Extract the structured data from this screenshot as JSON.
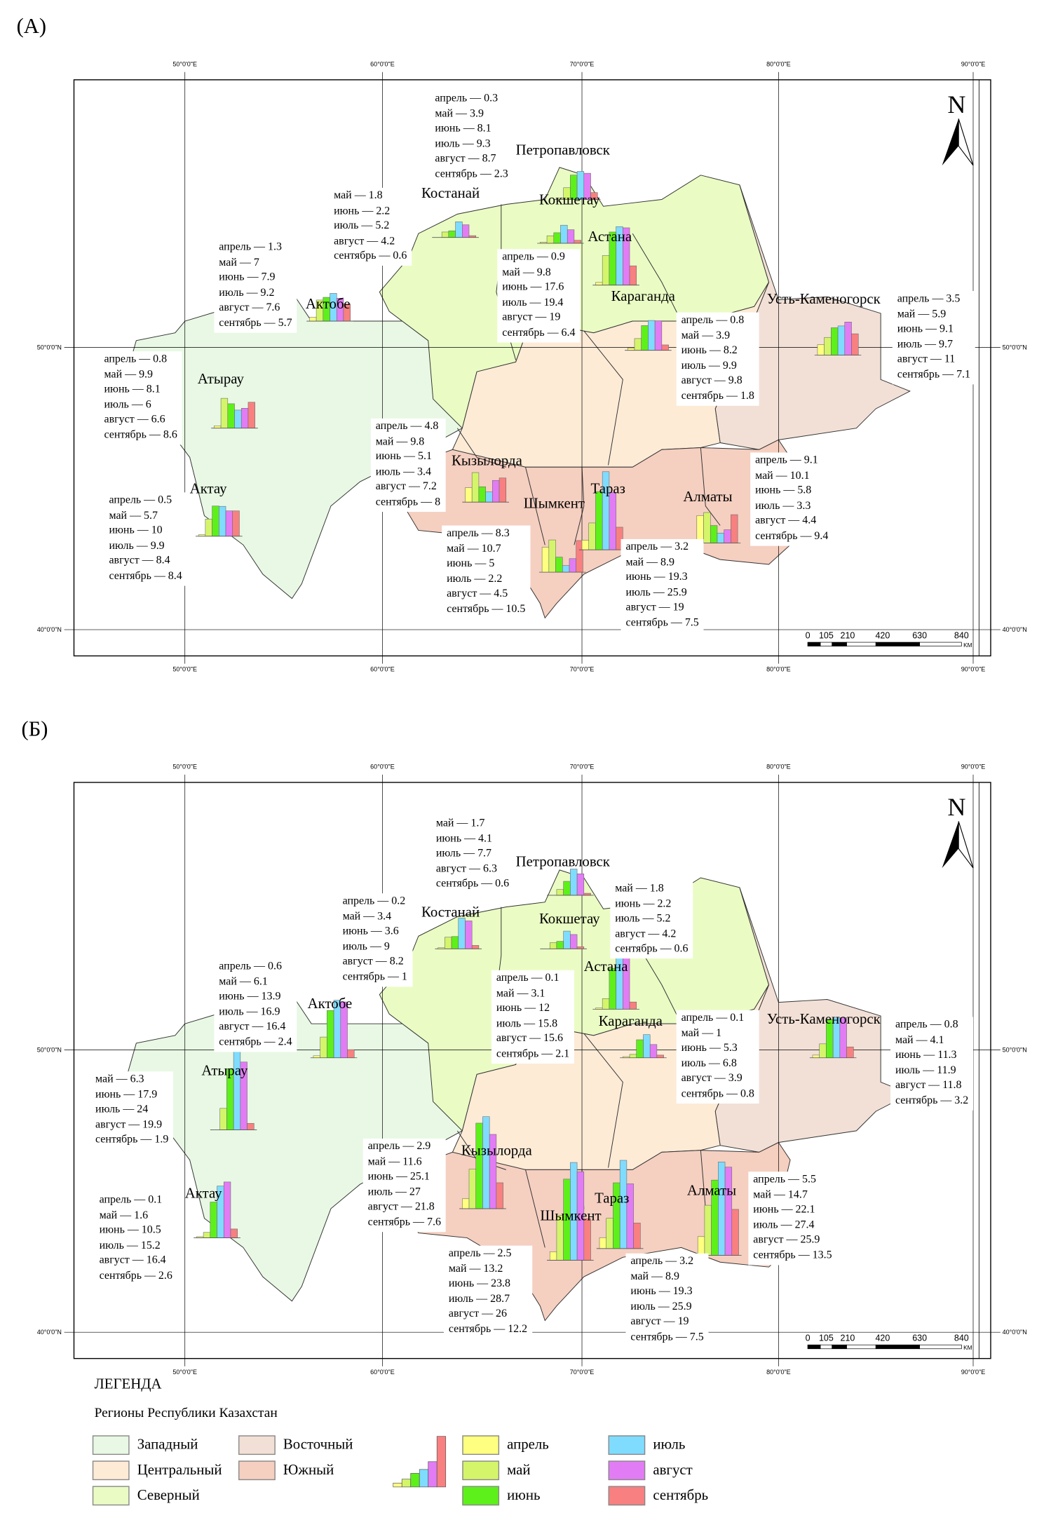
{
  "panels": [
    {
      "label": "(А)",
      "cities": [
        {
          "name": "Петропавловск",
          "values": [
            0.3,
            3.9,
            8.1,
            9.3,
            8.7,
            2.3
          ],
          "box": [
            "апрель — 0.3",
            "май — 3.9",
            "июнь — 8.1",
            "июль — 9.3",
            "август — 8.7",
            "сентябрь — 2.3"
          ]
        },
        {
          "name": "Костанай",
          "values": [
            null,
            1.8,
            2.2,
            5.2,
            4.2,
            0.6
          ],
          "box": [
            "май — 1.8",
            "июнь — 2.2",
            "июль — 5.2",
            "август — 4.2",
            "сентябрь — 0.6"
          ]
        },
        {
          "name": "Кокшетау",
          "values": [
            0.3,
            2.5,
            3.5,
            6,
            4.5,
            1
          ],
          "box": []
        },
        {
          "name": "Астана",
          "values": [
            0.9,
            9.8,
            17.6,
            19.4,
            19,
            6.4
          ],
          "box": [
            "апрель — 0.9",
            "май — 9.8",
            "июнь — 17.6",
            "июль — 19.4",
            "август — 19",
            "сентябрь — 6.4"
          ]
        },
        {
          "name": "Караганда",
          "values": [
            0.8,
            3.9,
            8.2,
            9.9,
            9.8,
            1.8
          ],
          "box": [
            "апрель — 0.8",
            "май — 3.9",
            "июнь — 8.2",
            "июль — 9.9",
            "август — 9.8",
            "сентябрь — 1.8"
          ]
        },
        {
          "name": "Усть-Каменогорск",
          "values": [
            3.5,
            5.9,
            9.1,
            9.7,
            11,
            7.1
          ],
          "box": [
            "апрель — 3.5",
            "май — 5.9",
            "июнь — 9.1",
            "июль — 9.7",
            "август — 11",
            "сентябрь — 7.1"
          ]
        },
        {
          "name": "Актобе",
          "values": [
            1.3,
            7,
            7.9,
            9.2,
            7.6,
            5.7
          ],
          "box": [
            "апрель — 1.3",
            "май — 7",
            "июнь — 7.9",
            "июль — 9.2",
            "август — 7.6",
            "сентябрь — 5.7"
          ]
        },
        {
          "name": "Атырау",
          "values": [
            0.8,
            9.9,
            8.1,
            6,
            6.6,
            8.6
          ],
          "box": [
            "апрель — 0.8",
            "май — 9.9",
            "июнь — 8.1",
            "июль — 6",
            "август — 6.6",
            "сентябрь — 8.6"
          ]
        },
        {
          "name": "Актау",
          "values": [
            0.5,
            5.7,
            10,
            9.9,
            8.4,
            8.4
          ],
          "box": [
            "апрель — 0.5",
            "май — 5.7",
            "июнь — 10",
            "июль — 9.9",
            "август — 8.4",
            "сентябрь — 8.4"
          ]
        },
        {
          "name": "Кызылорда",
          "values": [
            4.8,
            9.8,
            5.1,
            3.4,
            7.2,
            8
          ],
          "box": [
            "апрель — 4.8",
            "май — 9.8",
            "июнь — 5.1",
            "июль — 3.4",
            "август — 7.2",
            "сентябрь — 8"
          ]
        },
        {
          "name": "Шымкент",
          "values": [
            8.3,
            10.7,
            5,
            2.2,
            4.5,
            10.5
          ],
          "box": [
            "апрель — 8.3",
            "май — 10.7",
            "июнь — 5",
            "июль — 2.2",
            "август — 4.5",
            "сентябрь — 10.5"
          ]
        },
        {
          "name": "Тараз",
          "values": [
            3.2,
            8.9,
            19.3,
            25.9,
            19,
            7.5
          ],
          "box": [
            "апрель — 3.2",
            "май — 8.9",
            "июнь — 19.3",
            "июль — 25.9",
            "август — 19",
            "сентябрь — 7.5"
          ]
        },
        {
          "name": "Алматы",
          "values": [
            9.1,
            10.1,
            5.8,
            3.3,
            4.4,
            9.4
          ],
          "box": [
            "апрель — 9.1",
            "май — 10.1",
            "июнь — 5.8",
            "июль — 3.3",
            "август — 4.4",
            "сентябрь — 9.4"
          ]
        }
      ]
    },
    {
      "label": "(Б)",
      "cities": [
        {
          "name": "Петропавловск",
          "values": [
            null,
            1.7,
            4.1,
            7.7,
            6.3,
            0.6
          ],
          "box": [
            "май — 1.7",
            "июнь — 4.1",
            "июль — 7.7",
            "август — 6.3",
            "сентябрь — 0.6"
          ]
        },
        {
          "name": "Костанай",
          "values": [
            0.2,
            3.4,
            3.6,
            9,
            8.2,
            1
          ],
          "box": [
            "апрель — 0.2",
            "май — 3.4",
            "июнь — 3.6",
            "июль — 9",
            "август — 8.2",
            "сентябрь — 1"
          ]
        },
        {
          "name": "Кокшетау",
          "values": [
            null,
            1.8,
            2.2,
            5.2,
            4.2,
            0.6
          ],
          "box": [
            "май —  1.8",
            "июнь — 2.2",
            "июль — 5.2",
            "август — 4.2",
            "сентябрь — 0.6"
          ]
        },
        {
          "name": "Астана",
          "values": [
            0.1,
            3.1,
            12,
            15.8,
            15.6,
            2.1
          ],
          "box": [
            "апрель — 0.1",
            "май — 3.1",
            "июнь — 12",
            "июль — 15.8",
            "август — 15.6",
            "сентябрь — 2.1"
          ]
        },
        {
          "name": "Караганда",
          "values": [
            0.1,
            1,
            5.3,
            6.8,
            3.9,
            0.8
          ],
          "box": [
            "апрель — 0.1",
            "май — 1",
            "июнь — 5.3",
            "июль — 6.8",
            "август — 3.9",
            "сентябрь — 0.8"
          ]
        },
        {
          "name": "Усть-Каменогорск",
          "values": [
            0.8,
            4.1,
            11.3,
            11.9,
            11.8,
            3.2
          ],
          "box": [
            "апрель — 0.8",
            "май — 4.1",
            "июнь — 11.3",
            "июль — 11.9",
            "август — 11.8",
            "сентябрь — 3.2"
          ]
        },
        {
          "name": "Актобе",
          "values": [
            0.6,
            6.1,
            13.9,
            16.9,
            16.4,
            2.4
          ],
          "box": [
            "апрель — 0.6",
            "май — 6.1",
            "июнь — 13.9",
            "июль — 16.9",
            "август — 16.4",
            "сентябрь — 2.4"
          ]
        },
        {
          "name": "Атырау",
          "values": [
            null,
            6.3,
            17.9,
            24,
            19.9,
            1.9
          ],
          "box": [
            "май —  6.3",
            "июнь — 17.9",
            "июль — 24",
            "август — 19.9",
            "сентябрь — 1.9"
          ]
        },
        {
          "name": "Актау",
          "values": [
            0.1,
            1.6,
            10.5,
            15.2,
            16.4,
            2.6
          ],
          "box": [
            "апрель — 0.1",
            "май — 1.6",
            "июнь — 10.5",
            "июль — 15.2",
            "август — 16.4",
            "сентябрь — 2.6"
          ]
        },
        {
          "name": "Кызылорда",
          "values": [
            2.9,
            11.6,
            25.1,
            27,
            21.8,
            7.6
          ],
          "box": [
            "апрель — 2.9",
            "май — 11.6",
            "июнь — 25.1",
            "июль — 27",
            "август — 21.8",
            "сентябрь — 7.6"
          ]
        },
        {
          "name": "Шымкент",
          "values": [
            2.5,
            13.2,
            23.8,
            28.7,
            26,
            12.2
          ],
          "box": [
            "апрель — 2.5",
            "май — 13.2",
            "июнь — 23.8",
            "июль — 28.7",
            "август — 26",
            "сентябрь — 12.2"
          ]
        },
        {
          "name": "Тараз",
          "values": [
            3.2,
            8.9,
            19.3,
            25.9,
            19,
            7.5
          ],
          "box": [
            "апрель — 3.2",
            "май — 8.9",
            "июнь — 19.3",
            "июль — 25.9",
            "август — 19",
            "сентябрь — 7.5"
          ]
        },
        {
          "name": "Алматы",
          "values": [
            5.5,
            14.7,
            22.1,
            27.4,
            25.9,
            13.5
          ],
          "box": [
            "апрель — 5.5",
            "май — 14.7",
            "июнь — 22.1",
            "июль — 27.4",
            "август — 25.9",
            "сентябрь — 13.5"
          ]
        }
      ]
    }
  ],
  "axes": {
    "lon_labels": [
      "50°0'0\"E",
      "60°0'0\"E",
      "70°0'0\"E",
      "80°0'0\"E",
      "90°0'0\"E"
    ],
    "lat_labels": [
      "50°0'0\"N",
      "40°0'0\"N"
    ]
  },
  "north_label": "N",
  "scale_bar": {
    "labels": [
      "0",
      "105",
      "210",
      "420",
      "630",
      "840"
    ],
    "unit": "KM"
  },
  "legend": {
    "title": "ЛЕГЕНДА",
    "subtitle": "Регионы Республики Казахстан",
    "regions": [
      {
        "name": "Западный",
        "color": "#e8f8e4"
      },
      {
        "name": "Центральный",
        "color": "#fdebd6"
      },
      {
        "name": "Северный",
        "color": "#eafcc4"
      },
      {
        "name": "Восточный",
        "color": "#f2e0d6"
      },
      {
        "name": "Южный",
        "color": "#f5cfc0"
      }
    ],
    "months": [
      {
        "name": "апрель",
        "color": "#ffff80"
      },
      {
        "name": "май",
        "color": "#d4f56a"
      },
      {
        "name": "июнь",
        "color": "#5ef01a"
      },
      {
        "name": "июль",
        "color": "#7fdcff"
      },
      {
        "name": "август",
        "color": "#e27cf5"
      },
      {
        "name": "сентябрь",
        "color": "#f88080"
      }
    ]
  }
}
